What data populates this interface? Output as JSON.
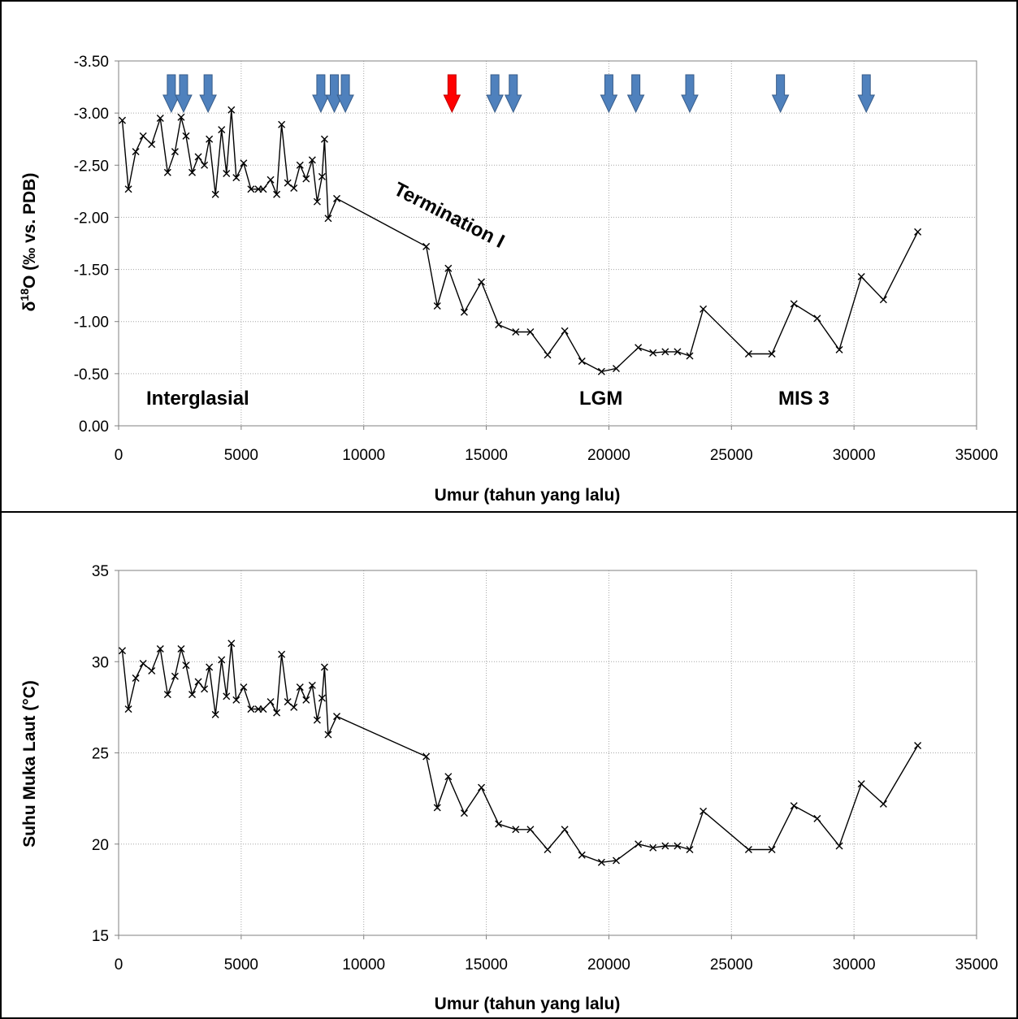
{
  "colors": {
    "arrow_blue": "#4f81bd",
    "arrow_blue_stroke": "#385d8a",
    "arrow_red": "#ff0000",
    "line": "#000000",
    "grid": "#a6a6a6"
  },
  "chart_data": [
    {
      "type": "line",
      "xlabel": "Umur (tahun yang lalu)",
      "ylabel_prefix": "δ",
      "ylabel_sup": "18",
      "ylabel_suffix": "O (‰ vs. PDB)",
      "xlim": [
        0,
        35000
      ],
      "ylim": [
        0,
        -3.5
      ],
      "y_reversed": true,
      "grid": true,
      "xticks": [
        "0",
        "5000",
        "10000",
        "15000",
        "20000",
        "25000",
        "30000",
        "35000"
      ],
      "yticks": [
        "-3.50",
        "-3.00",
        "-2.50",
        "-2.00",
        "-1.50",
        "-1.00",
        "-0.50",
        "0.00"
      ],
      "marker": "x",
      "x": [
        150,
        400,
        700,
        1000,
        1350,
        1700,
        2000,
        2300,
        2550,
        2750,
        3000,
        3250,
        3500,
        3700,
        3950,
        4200,
        4400,
        4600,
        4800,
        5100,
        5400,
        5700,
        5900,
        6200,
        6450,
        6650,
        6900,
        7150,
        7400,
        7650,
        7900,
        8100,
        8300,
        8400,
        8550,
        8900,
        12550,
        13000,
        13450,
        14100,
        14800,
        15500,
        16200,
        16800,
        17500,
        18200,
        18900,
        19700,
        20300,
        21200,
        21800,
        22300,
        22800,
        23300,
        23850,
        25700,
        26650,
        27550,
        28500,
        29400,
        30300,
        31200,
        32600
      ],
      "values": [
        -2.93,
        -2.27,
        -2.63,
        -2.78,
        -2.7,
        -2.95,
        -2.43,
        -2.63,
        -2.96,
        -2.78,
        -2.43,
        -2.58,
        -2.5,
        -2.75,
        -2.22,
        -2.84,
        -2.42,
        -3.03,
        -2.38,
        -2.52,
        -2.27,
        -2.27,
        -2.27,
        -2.36,
        -2.22,
        -2.89,
        -2.33,
        -2.28,
        -2.5,
        -2.37,
        -2.55,
        -2.15,
        -2.39,
        -2.75,
        -1.99,
        -2.18,
        -1.72,
        -1.15,
        -1.51,
        -1.09,
        -1.38,
        -0.97,
        -0.9,
        -0.9,
        -0.68,
        -0.91,
        -0.62,
        -0.52,
        -0.55,
        -0.75,
        -0.7,
        -0.71,
        -0.71,
        -0.67,
        -1.12,
        -0.69,
        -0.69,
        -1.17,
        -1.03,
        -0.73,
        -1.43,
        -1.21,
        -1.86
      ],
      "arrows": [
        {
          "x": 2150,
          "color": "blue"
        },
        {
          "x": 2650,
          "color": "blue"
        },
        {
          "x": 3650,
          "color": "blue"
        },
        {
          "x": 8250,
          "color": "blue"
        },
        {
          "x": 8800,
          "color": "blue"
        },
        {
          "x": 9250,
          "color": "blue"
        },
        {
          "x": 13600,
          "color": "red"
        },
        {
          "x": 15350,
          "color": "blue"
        },
        {
          "x": 16100,
          "color": "blue"
        },
        {
          "x": 20000,
          "color": "blue"
        },
        {
          "x": 21100,
          "color": "blue"
        },
        {
          "x": 23300,
          "color": "blue"
        },
        {
          "x": 27000,
          "color": "blue"
        },
        {
          "x": 30500,
          "color": "blue"
        }
      ],
      "annotations": [
        "Interglasial",
        "Termination I",
        "LGM",
        "MIS 3"
      ]
    },
    {
      "type": "line",
      "xlabel": "Umur (tahun yang lalu)",
      "ylabel": "Suhu Muka Laut (°C)",
      "xlim": [
        0,
        35000
      ],
      "ylim": [
        15,
        35
      ],
      "grid": true,
      "xticks": [
        "0",
        "5000",
        "10000",
        "15000",
        "20000",
        "25000",
        "30000",
        "35000"
      ],
      "yticks": [
        "35",
        "30",
        "25",
        "20",
        "15"
      ],
      "marker": "x",
      "x": [
        150,
        400,
        700,
        1000,
        1350,
        1700,
        2000,
        2300,
        2550,
        2750,
        3000,
        3250,
        3500,
        3700,
        3950,
        4200,
        4400,
        4600,
        4800,
        5100,
        5400,
        5700,
        5900,
        6200,
        6450,
        6650,
        6900,
        7150,
        7400,
        7650,
        7900,
        8100,
        8300,
        8400,
        8550,
        8900,
        12550,
        13000,
        13450,
        14100,
        14800,
        15500,
        16200,
        16800,
        17500,
        18200,
        18900,
        19700,
        20300,
        21200,
        21800,
        22300,
        22800,
        23300,
        23850,
        25700,
        26650,
        27550,
        28500,
        29400,
        30300,
        31200,
        32600
      ],
      "values": [
        30.6,
        27.4,
        29.1,
        29.9,
        29.5,
        30.7,
        28.2,
        29.2,
        30.7,
        29.8,
        28.2,
        28.9,
        28.5,
        29.7,
        27.1,
        30.1,
        28.1,
        31.0,
        27.9,
        28.6,
        27.4,
        27.4,
        27.4,
        27.8,
        27.2,
        30.4,
        27.8,
        27.5,
        28.6,
        27.9,
        28.7,
        26.8,
        28.0,
        29.7,
        26.0,
        27.0,
        24.8,
        22.0,
        23.7,
        21.7,
        23.1,
        21.1,
        20.8,
        20.8,
        19.7,
        20.8,
        19.4,
        19.0,
        19.1,
        20.0,
        19.8,
        19.9,
        19.9,
        19.7,
        21.8,
        19.7,
        19.7,
        22.1,
        21.4,
        19.9,
        23.3,
        22.2,
        25.4
      ]
    }
  ]
}
